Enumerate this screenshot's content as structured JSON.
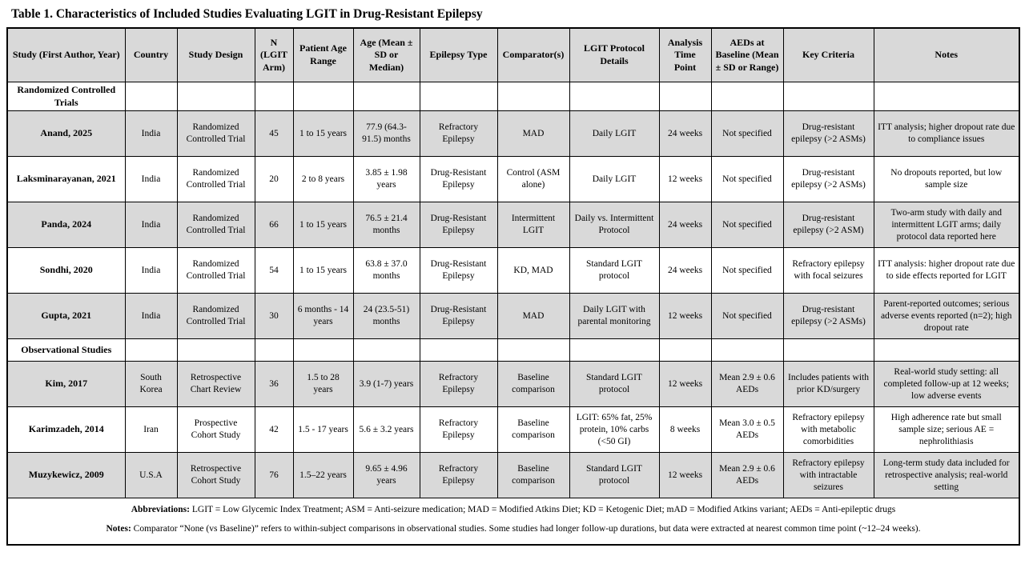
{
  "title": "Table 1. Characteristics of Included Studies Evaluating LGIT in Drug-Resistant Epilepsy",
  "table": {
    "headers": [
      "Study (First Author, Year)",
      "Country",
      "Study Design",
      "N (LGIT Arm)",
      "Patient Age Range",
      "Age (Mean ± SD or Median)",
      "Epilepsy Type",
      "Comparator(s)",
      "LGIT Protocol Details",
      "Analysis Time Point",
      "AEDs at Baseline (Mean ± SD or Range)",
      "Key Criteria",
      "Notes"
    ],
    "rows": [
      {
        "type": "section",
        "label": "Randomized Controlled Trials",
        "shaded": false
      },
      {
        "type": "data",
        "shaded": true,
        "cells": [
          "Anand, 2025",
          "India",
          "Randomized Controlled Trial",
          "45",
          "1 to 15 years",
          "77.9 (64.3-91.5) months",
          "Refractory Epilepsy",
          "MAD",
          "Daily LGIT",
          "24 weeks",
          "Not specified",
          "Drug-resistant epilepsy (>2 ASMs)",
          "ITT analysis; higher dropout rate due to compliance issues"
        ]
      },
      {
        "type": "data",
        "shaded": false,
        "cells": [
          "Laksminarayanan, 2021",
          "India",
          "Randomized Controlled Trial",
          "20",
          "2 to 8 years",
          "3.85 ± 1.98 years",
          "Drug-Resistant Epilepsy",
          "Control (ASM alone)",
          "Daily LGIT",
          "12 weeks",
          "Not specified",
          "Drug-resistant epilepsy (>2 ASMs)",
          "No dropouts reported, but low sample size"
        ]
      },
      {
        "type": "data",
        "shaded": true,
        "cells": [
          "Panda, 2024",
          "India",
          "Randomized Controlled Trial",
          "66",
          "1 to 15 years",
          "76.5 ± 21.4 months",
          "Drug-Resistant Epilepsy",
          "Intermittent LGIT",
          "Daily vs. Intermittent Protocol",
          "24 weeks",
          "Not specified",
          "Drug-resistant epilepsy (>2 ASM)",
          "Two-arm study with daily and intermittent LGIT arms; daily protocol data reported here"
        ]
      },
      {
        "type": "data",
        "shaded": false,
        "cells": [
          "Sondhi, 2020",
          "India",
          "Randomized Controlled Trial",
          "54",
          "1 to 15 years",
          "63.8 ± 37.0 months",
          "Drug-Resistant Epilepsy",
          "KD, MAD",
          "Standard LGIT protocol",
          "24 weeks",
          "Not specified",
          "Refractory epilepsy with focal seizures",
          "ITT analysis: higher dropout rate due to side effects reported for LGIT"
        ]
      },
      {
        "type": "data",
        "shaded": true,
        "cells": [
          "Gupta, 2021",
          "India",
          "Randomized Controlled Trial",
          "30",
          "6 months - 14 years",
          "24 (23.5-51) months",
          "Drug-Resistant Epilepsy",
          "MAD",
          "Daily LGIT with parental monitoring",
          "12 weeks",
          "Not specified",
          "Drug-resistant epilepsy (>2 ASMs)",
          "Parent-reported outcomes; serious adverse events reported (n=2); high dropout rate"
        ]
      },
      {
        "type": "section",
        "label": "Observational Studies",
        "shaded": false
      },
      {
        "type": "data",
        "shaded": true,
        "cells": [
          "Kim, 2017",
          "South Korea",
          "Retrospective Chart Review",
          "36",
          "1.5 to 28 years",
          "3.9 (1-7) years",
          "Refractory Epilepsy",
          "Baseline comparison",
          "Standard LGIT protocol",
          "12 weeks",
          "Mean 2.9 ± 0.6 AEDs",
          "Includes patients with prior KD/surgery",
          "Real-world study setting: all completed follow-up at 12 weeks; low adverse events"
        ]
      },
      {
        "type": "data",
        "shaded": false,
        "cells": [
          "Karimzadeh, 2014",
          "Iran",
          "Prospective Cohort Study",
          "42",
          "1.5 - 17 years",
          "5.6 ± 3.2 years",
          "Refractory Epilepsy",
          "Baseline comparison",
          "LGIT: 65% fat, 25% protein, 10% carbs (<50 GI)",
          "8 weeks",
          "Mean 3.0 ± 0.5 AEDs",
          "Refractory epilepsy with metabolic comorbidities",
          "High adherence rate but small sample size; serious AE = nephrolithiasis"
        ]
      },
      {
        "type": "data",
        "shaded": true,
        "cells": [
          "Muzykewicz, 2009",
          "U.S.A",
          "Retrospective Cohort Study",
          "76",
          "1.5–22 years",
          "9.65 ± 4.96 years",
          "Refractory Epilepsy",
          "Baseline comparison",
          "Standard LGIT protocol",
          "12 weeks",
          "Mean 2.9 ± 0.6 AEDs",
          "Refractory epilepsy with intractable seizures",
          "Long-term study data included for retrospective analysis; real-world setting"
        ]
      }
    ]
  },
  "footer": {
    "abbreviations_label": "Abbreviations:",
    "abbreviations_text": " LGIT = Low Glycemic Index Treatment; ASM = Anti-seizure medication; MAD = Modified Atkins Diet; KD = Ketogenic Diet; mAD = Modified Atkins variant; AEDs = Anti-epileptic drugs",
    "notes_label": "Notes:",
    "notes_text": " Comparator “None (vs Baseline)” refers to within-subject comparisons in observational studies. Some studies had longer follow-up durations, but data were extracted at nearest common time point (~12–24 weeks)."
  },
  "colors": {
    "header_bg": "#d9d9d9",
    "shaded_row_bg": "#d9d9d9",
    "border": "#000000",
    "text": "#000000"
  }
}
